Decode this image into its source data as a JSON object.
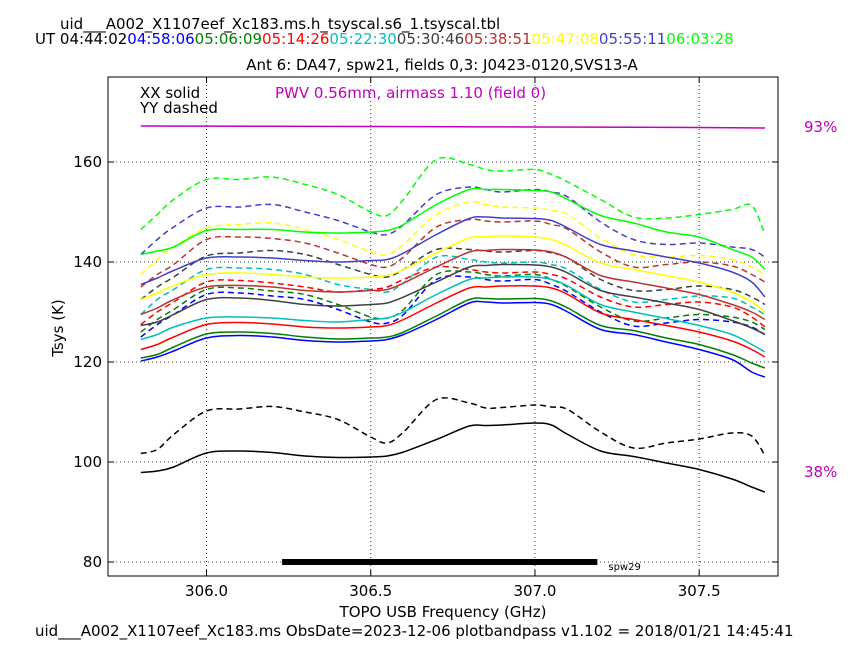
{
  "header": {
    "file_title": "uid___A002_X1107eef_Xc183.ms.h_tsyscal.s6_1.tsyscal.tbl",
    "ut_label": "UT",
    "ut_times": [
      {
        "time": "04:44:02",
        "color": "#000000"
      },
      {
        "time": "04:58:06",
        "color": "#0000ff"
      },
      {
        "time": "05:06:09",
        "color": "#008000"
      },
      {
        "time": "05:14:26",
        "color": "#ff0000"
      },
      {
        "time": "05:22:30",
        "color": "#00bfbf"
      },
      {
        "time": "05:30:46",
        "color": "#404040"
      },
      {
        "time": "05:38:51",
        "color": "#bb3333"
      },
      {
        "time": "05:47:08",
        "color": "#ffff00"
      },
      {
        "time": "05:55:11",
        "color": "#4040cc"
      },
      {
        "time": "06:03:28",
        "color": "#00ff00"
      }
    ],
    "plot_title": "Ant 6: DA47,  spw21,  fields 0,3: J0423-0120,SVS13-A"
  },
  "legend": {
    "xx": "XX solid",
    "yy": "YY dashed",
    "pwv": "PWV 0.56mm, airmass 1.10 (field 0)",
    "pwv_color": "#c000c0"
  },
  "footer": {
    "text": "uid___A002_X1107eef_Xc183.ms  ObsDate=2023-12-06   plotbandpass v1.102 = 2018/01/21 14:45:41"
  },
  "chart_data": {
    "type": "line",
    "title": "Ant 6: DA47,  spw21,  fields 0,3: J0423-0120,SVS13-A",
    "xlabel": "TOPO USB Frequency (GHz)",
    "ylabel": "Tsys (K)",
    "xlim": [
      305.7,
      307.74
    ],
    "ylim": [
      77.2,
      177
    ],
    "x_ticks": [
      306.0,
      306.5,
      307.0,
      307.5
    ],
    "x_tick_labels": [
      "306.0",
      "306.5",
      "307.0",
      "307.5"
    ],
    "y_ticks": [
      80,
      100,
      120,
      140,
      160
    ],
    "y_tick_labels": [
      "80",
      "100",
      "120",
      "140",
      "160"
    ],
    "grid": true,
    "x": [
      305.8,
      305.85,
      305.9,
      306.0,
      306.1,
      306.2,
      306.3,
      306.4,
      306.5,
      306.55,
      306.6,
      306.7,
      306.8,
      306.85,
      306.9,
      307.0,
      307.05,
      307.1,
      307.2,
      307.3,
      307.4,
      307.5,
      307.6,
      307.66,
      307.7
    ],
    "series": [
      {
        "name": "04:44:02 XX",
        "color": "#000000",
        "dash": false,
        "values": [
          97.9,
          98.2,
          99.0,
          101.8,
          102.2,
          101.9,
          101.2,
          100.9,
          101.0,
          101.2,
          102.0,
          104.5,
          107.2,
          107.3,
          107.4,
          107.8,
          107.4,
          105.5,
          102.2,
          101.1,
          99.8,
          98.5,
          96.6,
          95.0,
          94.0
        ]
      },
      {
        "name": "04:44:02 YY",
        "color": "#000000",
        "dash": true,
        "values": [
          101.7,
          102.5,
          105.5,
          110.2,
          110.6,
          111.1,
          110.0,
          108.5,
          105.0,
          103.8,
          106.0,
          112.5,
          111.8,
          110.8,
          110.9,
          111.4,
          111.0,
          110.5,
          106.0,
          102.8,
          103.8,
          104.6,
          105.8,
          105.2,
          101.3
        ]
      },
      {
        "name": "04:58:06 XX",
        "color": "#0000ff",
        "dash": false,
        "values": [
          120.2,
          121.0,
          122.2,
          124.8,
          125.3,
          125.0,
          124.3,
          124.0,
          124.2,
          124.5,
          125.5,
          128.5,
          131.8,
          132.0,
          131.8,
          131.9,
          131.5,
          130.0,
          126.5,
          125.5,
          124.0,
          122.5,
          120.5,
          118.0,
          117.0
        ]
      },
      {
        "name": "04:58:06 YY",
        "color": "#0000ff",
        "dash": true,
        "values": [
          125.0,
          127.5,
          129.5,
          133.5,
          133.8,
          133.2,
          132.5,
          130.5,
          128.0,
          127.8,
          129.5,
          136.5,
          137.0,
          136.5,
          136.2,
          136.5,
          135.5,
          134.0,
          130.0,
          127.2,
          127.8,
          128.5,
          128.0,
          127.0,
          125.5
        ]
      },
      {
        "name": "05:06:09 XX",
        "color": "#008000",
        "dash": false,
        "values": [
          120.8,
          121.5,
          123.0,
          125.6,
          126.0,
          125.7,
          125.0,
          124.6,
          124.8,
          125.0,
          126.0,
          129.2,
          132.5,
          132.7,
          132.6,
          132.7,
          132.2,
          130.8,
          127.3,
          126.3,
          124.8,
          123.5,
          121.5,
          119.8,
          118.8
        ]
      },
      {
        "name": "05:06:09 YY",
        "color": "#008000",
        "dash": true,
        "values": [
          126.0,
          128.5,
          130.5,
          134.5,
          134.8,
          134.2,
          133.5,
          131.5,
          129.0,
          128.8,
          130.5,
          137.5,
          138.0,
          137.5,
          137.2,
          137.5,
          136.5,
          135.0,
          131.0,
          128.2,
          128.8,
          129.5,
          129.0,
          128.0,
          126.5
        ]
      },
      {
        "name": "05:14:26 XX",
        "color": "#ff0000",
        "dash": false,
        "values": [
          122.5,
          123.5,
          125.0,
          127.5,
          127.9,
          127.6,
          127.0,
          126.8,
          127.0,
          127.3,
          128.5,
          131.8,
          134.8,
          135.0,
          135.2,
          135.2,
          134.8,
          133.5,
          129.8,
          128.5,
          127.3,
          126.0,
          124.2,
          122.5,
          121.0
        ]
      },
      {
        "name": "05:14:26 YY",
        "color": "#ff0000",
        "dash": true,
        "values": [
          127.5,
          130.0,
          132.0,
          136.0,
          136.3,
          135.8,
          135.0,
          134.0,
          134.5,
          135.0,
          136.5,
          139.0,
          138.5,
          138.0,
          137.8,
          138.0,
          137.5,
          136.5,
          133.0,
          131.0,
          131.5,
          132.0,
          131.0,
          129.0,
          127.0
        ]
      },
      {
        "name": "05:22:30 XX",
        "color": "#00bfbf",
        "dash": false,
        "values": [
          124.5,
          125.5,
          127.0,
          128.8,
          129.0,
          128.8,
          128.3,
          128.0,
          128.5,
          128.8,
          130.0,
          133.5,
          136.5,
          136.8,
          137.0,
          137.0,
          136.5,
          135.2,
          131.5,
          130.0,
          128.7,
          127.3,
          125.5,
          123.5,
          122.0
        ]
      },
      {
        "name": "05:22:30 YY",
        "color": "#00bfbf",
        "dash": true,
        "values": [
          129.5,
          132.5,
          134.5,
          138.5,
          138.8,
          138.5,
          137.5,
          135.5,
          134.5,
          134.0,
          135.8,
          141.0,
          140.5,
          140.0,
          139.8,
          140.0,
          139.5,
          138.5,
          134.5,
          132.0,
          132.5,
          133.2,
          132.8,
          131.0,
          129.5
        ]
      },
      {
        "name": "05:30:46 XX",
        "color": "#404040",
        "dash": false,
        "values": [
          127.3,
          128.0,
          129.5,
          132.5,
          132.8,
          132.3,
          131.5,
          131.2,
          131.5,
          131.8,
          133.0,
          136.0,
          139.0,
          139.3,
          139.5,
          139.4,
          139.0,
          137.8,
          134.3,
          133.0,
          131.8,
          130.5,
          128.3,
          126.8,
          125.5
        ]
      },
      {
        "name": "05:30:46 YY",
        "color": "#404040",
        "dash": true,
        "values": [
          132.5,
          135.0,
          137.0,
          141.2,
          141.8,
          142.3,
          141.5,
          139.5,
          137.5,
          137.0,
          138.5,
          142.5,
          142.5,
          142.2,
          142.0,
          142.3,
          141.8,
          140.8,
          136.5,
          134.3,
          134.5,
          135.2,
          134.5,
          133.0,
          131.5
        ]
      },
      {
        "name": "05:38:51 XX",
        "color": "#bb3333",
        "dash": false,
        "values": [
          129.5,
          130.8,
          132.5,
          135.0,
          135.3,
          135.0,
          134.3,
          134.0,
          134.3,
          134.5,
          135.8,
          139.0,
          142.0,
          142.3,
          142.5,
          142.4,
          142.0,
          140.8,
          137.3,
          136.0,
          134.8,
          133.5,
          131.5,
          130.0,
          128.5
        ]
      },
      {
        "name": "05:38:51 YY",
        "color": "#bb3333",
        "dash": true,
        "values": [
          135.0,
          137.5,
          139.5,
          144.5,
          145.0,
          144.7,
          143.8,
          141.8,
          139.5,
          139.0,
          141.0,
          147.0,
          148.5,
          148.2,
          148.0,
          148.2,
          147.5,
          146.5,
          142.0,
          139.0,
          139.5,
          140.0,
          139.2,
          137.5,
          136.0
        ]
      },
      {
        "name": "05:47:08 XX",
        "color": "#ffff00",
        "dash": false,
        "values": [
          132.5,
          133.8,
          135.3,
          137.5,
          137.8,
          137.5,
          137.0,
          136.8,
          137.0,
          137.3,
          138.5,
          141.8,
          144.8,
          145.0,
          145.2,
          145.0,
          144.5,
          143.2,
          139.8,
          138.5,
          137.3,
          136.0,
          134.0,
          132.0,
          130.0
        ]
      },
      {
        "name": "05:47:08 YY",
        "color": "#ffff00",
        "dash": true,
        "values": [
          137.5,
          140.5,
          143.0,
          146.8,
          147.5,
          147.8,
          146.5,
          144.5,
          142.0,
          141.5,
          143.5,
          149.5,
          152.0,
          151.5,
          151.0,
          150.8,
          150.3,
          149.5,
          144.8,
          141.5,
          141.0,
          141.3,
          140.5,
          139.0,
          137.5
        ]
      },
      {
        "name": "05:55:11 XX",
        "color": "#4040cc",
        "dash": false,
        "values": [
          135.5,
          136.8,
          138.3,
          140.8,
          141.0,
          140.8,
          140.3,
          140.0,
          140.3,
          140.5,
          141.8,
          145.5,
          148.7,
          149.0,
          148.8,
          148.7,
          148.3,
          146.8,
          143.5,
          142.2,
          141.0,
          139.8,
          138.0,
          136.0,
          133.0
        ]
      },
      {
        "name": "05:55:11 YY",
        "color": "#4040cc",
        "dash": true,
        "values": [
          141.5,
          144.5,
          147.0,
          150.8,
          151.0,
          151.5,
          150.0,
          148.3,
          146.0,
          145.5,
          147.5,
          153.5,
          155.0,
          154.5,
          154.0,
          154.5,
          154.0,
          153.0,
          148.0,
          144.5,
          143.5,
          143.8,
          143.0,
          142.5,
          141.0
        ]
      },
      {
        "name": "06:03:28 XX",
        "color": "#00ff00",
        "dash": false,
        "values": [
          141.5,
          142.2,
          143.0,
          146.3,
          146.5,
          146.5,
          146.0,
          145.8,
          146.0,
          146.3,
          147.5,
          151.5,
          154.5,
          154.5,
          154.5,
          154.3,
          154.0,
          152.5,
          149.3,
          147.8,
          146.0,
          145.0,
          142.5,
          141.0,
          138.5
        ]
      },
      {
        "name": "06:03:28 YY",
        "color": "#00ff00",
        "dash": true,
        "values": [
          146.5,
          149.5,
          152.5,
          156.5,
          156.5,
          157.0,
          155.5,
          153.5,
          150.0,
          149.3,
          152.5,
          160.5,
          159.5,
          158.5,
          158.2,
          158.5,
          157.5,
          156.0,
          152.5,
          149.0,
          148.8,
          149.5,
          150.5,
          151.3,
          145.5
        ]
      }
    ],
    "atm_transmission": {
      "name": "PWV 0.56mm, airmass 1.10 (field 0)",
      "color": "#c000c0",
      "x": [
        305.8,
        306.5,
        307.0,
        307.5,
        307.7
      ],
      "values_plot_units": [
        167.2,
        167.1,
        167.0,
        166.9,
        166.8
      ],
      "right_labels": [
        {
          "text": "93%",
          "y": 167.0
        },
        {
          "text": "38%",
          "y": 98.0
        }
      ]
    },
    "spw_bar": {
      "label": "spw29",
      "x_start": 306.23,
      "x_end": 307.19,
      "y": 80.0
    }
  }
}
